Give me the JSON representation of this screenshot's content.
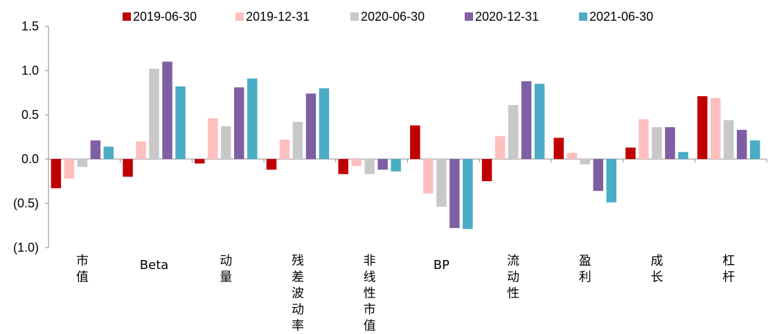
{
  "chart_data": {
    "type": "bar",
    "title": "",
    "xlabel": "",
    "ylabel": "",
    "ylim": [
      -1.0,
      1.5
    ],
    "yticks": [
      1.5,
      1.0,
      0.5,
      0.0,
      -0.5,
      -1.0
    ],
    "ytick_labels": [
      "1.5",
      "1.0",
      "0.5",
      "0.0",
      "(0.5)",
      "(1.0)"
    ],
    "categories": [
      "市值",
      "Beta",
      "动量",
      "残差波动率",
      "非线性市值",
      "BP",
      "流动性",
      "盈利",
      "成长",
      "杠杆"
    ],
    "category_orientation": [
      "vertical",
      "horizontal",
      "vertical",
      "vertical",
      "vertical",
      "horizontal",
      "vertical",
      "vertical",
      "vertical",
      "vertical"
    ],
    "legend_position": "top",
    "grid": false,
    "series": [
      {
        "name": "2019-06-30",
        "color": "#C00000",
        "values": [
          -0.33,
          -0.2,
          -0.05,
          -0.12,
          -0.17,
          0.38,
          -0.25,
          0.24,
          0.13,
          0.71
        ]
      },
      {
        "name": "2019-12-31",
        "color": "#FFBFBF",
        "values": [
          -0.22,
          0.2,
          0.46,
          0.22,
          -0.08,
          -0.39,
          0.26,
          0.07,
          0.45,
          0.69
        ]
      },
      {
        "name": "2020-06-30",
        "color": "#C8C8C8",
        "values": [
          -0.09,
          1.02,
          0.37,
          0.42,
          -0.17,
          -0.54,
          0.61,
          -0.06,
          0.36,
          0.44
        ]
      },
      {
        "name": "2020-12-31",
        "color": "#7F5FA3",
        "values": [
          0.21,
          1.1,
          0.81,
          0.74,
          -0.12,
          -0.78,
          0.88,
          -0.36,
          0.36,
          0.33
        ]
      },
      {
        "name": "2021-06-30",
        "color": "#4BACC6",
        "values": [
          0.14,
          0.82,
          0.91,
          0.8,
          -0.14,
          -0.79,
          0.85,
          -0.49,
          0.08,
          0.21
        ]
      }
    ]
  }
}
